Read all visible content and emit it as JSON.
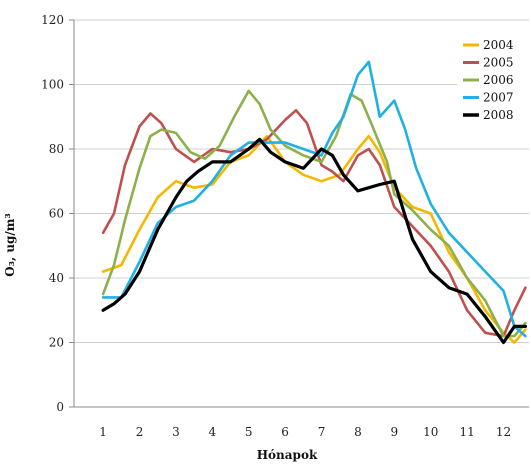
{
  "chart_data": {
    "type": "line",
    "title": "",
    "xlabel": "Hónapok",
    "ylabel": "O₃, ug/m³",
    "ylim": [
      0,
      120
    ],
    "yticks": [
      "0",
      "20",
      "40",
      "60",
      "80",
      "100",
      "120"
    ],
    "xlim": [
      0.2,
      12.7
    ],
    "xticks": [
      "1",
      "2",
      "3",
      "4",
      "5",
      "6",
      "7",
      "8",
      "9",
      "10",
      "11",
      "12"
    ],
    "grid": "horizontal",
    "legend_position": "top-right",
    "series": [
      {
        "name": "2004",
        "color": "#F5B800",
        "x": [
          1,
          1.5,
          2,
          2.5,
          3,
          3.5,
          4,
          4.5,
          5,
          5.5,
          6,
          6.5,
          7,
          7.5,
          8,
          8.3,
          8.6,
          9,
          9.5,
          10,
          10.5,
          11,
          11.5,
          12,
          12.3,
          12.6
        ],
        "y": [
          42,
          44,
          55,
          65,
          70,
          68,
          69,
          76,
          78,
          84,
          76,
          72,
          70,
          72,
          80,
          84,
          79,
          68,
          62,
          60,
          48,
          40,
          30,
          23,
          20,
          24
        ]
      },
      {
        "name": "2005",
        "color": "#C0504D",
        "x": [
          1,
          1.3,
          1.6,
          2,
          2.3,
          2.6,
          3,
          3.5,
          4,
          4.5,
          5,
          5.5,
          6,
          6.3,
          6.6,
          7,
          7.3,
          7.6,
          8,
          8.3,
          8.6,
          9,
          9.5,
          10,
          10.5,
          11,
          11.5,
          12,
          12.3,
          12.6
        ],
        "y": [
          54,
          60,
          75,
          87,
          91,
          88,
          80,
          76,
          80,
          79,
          80,
          83,
          89,
          92,
          88,
          75,
          73,
          70,
          78,
          80,
          75,
          62,
          56,
          50,
          42,
          30,
          23,
          22,
          30,
          37
        ]
      },
      {
        "name": "2006",
        "color": "#8DB04A",
        "x": [
          1,
          1.3,
          1.6,
          2,
          2.3,
          2.6,
          3,
          3.4,
          3.8,
          4.2,
          4.6,
          5,
          5.3,
          5.6,
          6,
          6.5,
          7,
          7.4,
          7.8,
          8.1,
          8.4,
          8.8,
          9,
          9.5,
          10,
          10.5,
          11,
          11.5,
          12,
          12.3,
          12.6
        ],
        "y": [
          35,
          44,
          58,
          74,
          84,
          86,
          85,
          79,
          77,
          81,
          90,
          98,
          94,
          86,
          81,
          78,
          76,
          84,
          97,
          95,
          87,
          76,
          66,
          61,
          55,
          50,
          40,
          33,
          22,
          22,
          26
        ]
      },
      {
        "name": "2007",
        "color": "#1FB1E3",
        "x": [
          1,
          1.5,
          2,
          2.5,
          3,
          3.5,
          4,
          4.5,
          5,
          5.5,
          6,
          6.5,
          7,
          7.3,
          7.6,
          8,
          8.3,
          8.6,
          9,
          9.3,
          9.6,
          10,
          10.5,
          11,
          11.5,
          12,
          12.3,
          12.6
        ],
        "y": [
          34,
          34,
          45,
          57,
          62,
          64,
          70,
          78,
          82,
          82,
          82,
          80,
          78,
          85,
          90,
          103,
          107,
          90,
          95,
          86,
          74,
          63,
          54,
          48,
          42,
          36,
          25,
          22
        ]
      },
      {
        "name": "2008",
        "color": "#000000",
        "x": [
          1,
          1.3,
          1.6,
          2,
          2.5,
          3,
          3.3,
          3.6,
          4,
          4.5,
          5,
          5.3,
          5.6,
          6,
          6.5,
          7,
          7.3,
          7.6,
          8,
          8.3,
          8.6,
          9,
          9.5,
          10,
          10.5,
          11,
          11.5,
          12,
          12.3,
          12.6
        ],
        "y": [
          30,
          32,
          35,
          42,
          55,
          65,
          70,
          73,
          76,
          76,
          80,
          83,
          79,
          76,
          74,
          80,
          78,
          72,
          67,
          68,
          69,
          70,
          52,
          42,
          37,
          35,
          28,
          20,
          25,
          25
        ]
      }
    ]
  },
  "colors": {
    "background": "#ffffff",
    "grid": "#d0d0d0",
    "axis": "#8a8a8a"
  }
}
